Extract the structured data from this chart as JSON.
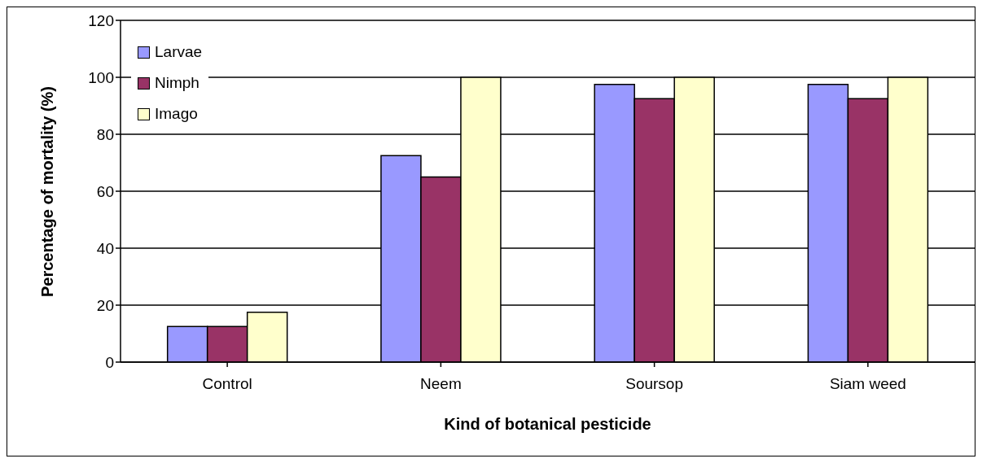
{
  "chart_data": {
    "type": "bar",
    "xlabel": "Kind of botanical pesticide",
    "ylabel": "Percentage of mortality (%)",
    "categories": [
      "Control",
      "Neem",
      "Soursop",
      "Siam weed"
    ],
    "series": [
      {
        "name": "Larvae",
        "color": "#9999ff",
        "values": [
          12.5,
          72.5,
          97.5,
          97.5
        ]
      },
      {
        "name": "Nimph",
        "color": "#993366",
        "values": [
          12.5,
          65,
          92.5,
          92.5
        ]
      },
      {
        "name": "Imago",
        "color": "#ffffcc",
        "values": [
          17.5,
          100,
          100,
          100
        ]
      }
    ],
    "ylim": [
      0,
      120
    ],
    "yticks": [
      0,
      20,
      40,
      60,
      80,
      100,
      120
    ],
    "grid": "y",
    "legend": "top left"
  }
}
